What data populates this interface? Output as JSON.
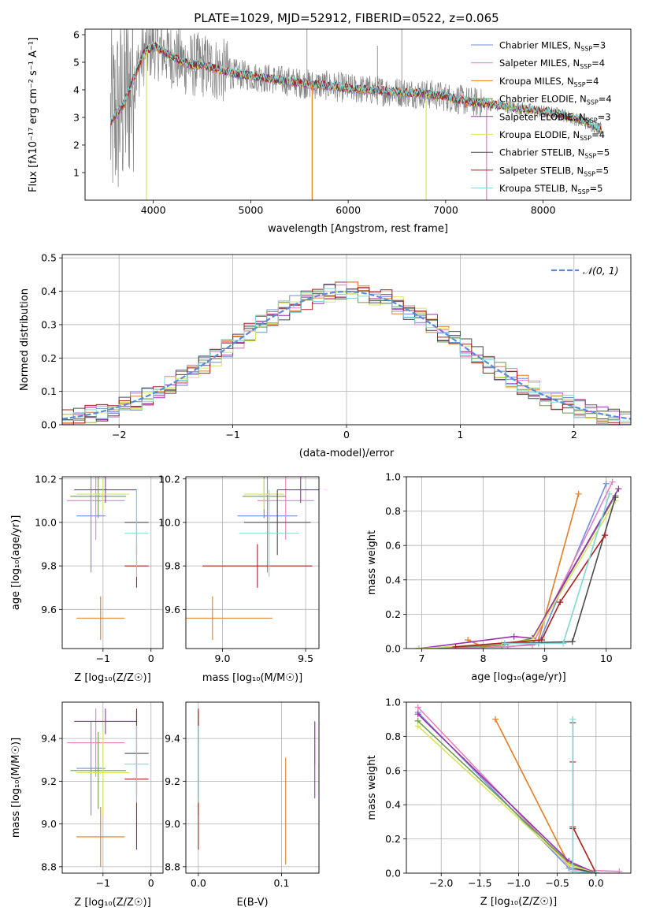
{
  "colors": {
    "chab_miles": "#6e8fdc",
    "salp_miles": "#e67fbc",
    "krou_miles": "#e57d22",
    "chab_elod": "#6d9b50",
    "salp_elod": "#9a30b0",
    "krou_elod": "#d8e45c",
    "chab_stel": "#4a4a4a",
    "salp_stel": "#aa1f1f",
    "krou_stel": "#7fd6d8",
    "data": "#808080",
    "normal": "#5b8bd6"
  },
  "chart_data": [
    {
      "id": "spectrum",
      "type": "line",
      "title": "PLATE=1029, MJD=52912, FIBERID=0522, z=0.065",
      "xlabel": "wavelength [Angstrom, rest frame]",
      "ylabel": "Flux [fλ10⁻¹⁷ erg cm⁻² s⁻¹ A⁻¹]",
      "xlim": [
        3300,
        8900
      ],
      "ylim": [
        0,
        6.2
      ],
      "xticks": [
        4000,
        5000,
        6000,
        7000,
        8000
      ],
      "yticks": [
        1,
        2,
        3,
        4,
        5,
        6
      ],
      "data_noise_band": [
        [
          3560,
          3800,
          0,
          6.2
        ],
        [
          3800,
          4800,
          1.8,
          6.2
        ]
      ],
      "continuum": {
        "x": [
          3560,
          3620,
          3700,
          3800,
          3900,
          4000,
          4100,
          4200,
          4300,
          4400,
          4500,
          4600,
          4800,
          5000,
          5200,
          5400,
          5600,
          5800,
          6000,
          6200,
          6400,
          6600,
          6800,
          7000,
          7200,
          7400,
          7600,
          7800,
          8000,
          8200,
          8400,
          8600
        ],
        "y": [
          2.8,
          3.1,
          3.5,
          4.4,
          5.3,
          5.6,
          5.4,
          5.2,
          5.0,
          4.9,
          4.9,
          4.8,
          4.6,
          4.5,
          4.4,
          4.3,
          4.2,
          4.15,
          4.05,
          4.0,
          3.95,
          3.9,
          3.85,
          3.75,
          3.6,
          3.5,
          3.4,
          3.3,
          3.2,
          3.1,
          2.85,
          2.6
        ]
      },
      "legend_position": "top-right",
      "legend": [
        {
          "label": "Chabrier MILES, N",
          "sub": "SSP",
          "value": "=3",
          "color_key": "chab_miles"
        },
        {
          "label": "Salpeter MILES, N",
          "sub": "SSP",
          "value": "=4",
          "color_key": "salp_miles"
        },
        {
          "label": "Kroupa MILES, N",
          "sub": "SSP",
          "value": "=4",
          "color_key": "krou_miles"
        },
        {
          "label": "Chabrier ELODIE, N",
          "sub": "SSP",
          "value": "=4",
          "color_key": "chab_elod"
        },
        {
          "label": "Salpeter ELODIE, N",
          "sub": "SSP",
          "value": "=3",
          "color_key": "salp_elod"
        },
        {
          "label": "Kroupa ELODIE, N",
          "sub": "SSP",
          "value": "=4",
          "color_key": "krou_elod"
        },
        {
          "label": "Chabrier STELIB, N",
          "sub": "SSP",
          "value": "=5",
          "color_key": "chab_stel"
        },
        {
          "label": "Salpeter STELIB, N",
          "sub": "SSP",
          "value": "=5",
          "color_key": "salp_stel"
        },
        {
          "label": "Kroupa STELIB, N",
          "sub": "SSP",
          "value": "=5",
          "color_key": "krou_stel"
        }
      ]
    },
    {
      "id": "residuals",
      "type": "line",
      "xlabel": "(data-model)/error",
      "ylabel": "Normed distribution",
      "xlim": [
        -2.5,
        2.5
      ],
      "ylim": [
        0,
        0.51
      ],
      "xticks": [
        -2,
        -1,
        0,
        1,
        2
      ],
      "xticklabels": [
        "−2",
        "−1",
        "0",
        "1",
        "2"
      ],
      "yticks": [
        0.0,
        0.1,
        0.2,
        0.3,
        0.4,
        0.5
      ],
      "yticklabels": [
        "0.0",
        "0.1",
        "0.2",
        "0.3",
        "0.4",
        "0.5"
      ],
      "grid": true,
      "legend_position": "top-right",
      "legend_label": "𝒩(0, 1)",
      "gaussian": {
        "mean": 0,
        "sigma": 1
      }
    },
    {
      "id": "age_vs_z",
      "type": "scatter",
      "xlabel": "Z [log₁₀(Z/Z☉)]",
      "ylabel": "age  [log₁₀(age/yr)]",
      "xlim": [
        -1.85,
        0.25
      ],
      "ylim": [
        9.42,
        10.21
      ],
      "xticks": [
        -1,
        0
      ],
      "xticklabels": [
        "−1",
        "0"
      ],
      "yticks": [
        9.6,
        9.8,
        10.0,
        10.2
      ],
      "yticklabels": [
        "9.6",
        "9.8",
        "10.0",
        "10.2"
      ],
      "grid": true,
      "points": [
        {
          "c": "chab_miles",
          "x": -1.25,
          "y": 10.03,
          "xe": 0.3,
          "ye": 0.26
        },
        {
          "c": "salp_miles",
          "x": -1.15,
          "y": 10.1,
          "xe": 0.6,
          "ye": 0.18
        },
        {
          "c": "krou_miles",
          "x": -1.05,
          "y": 9.56,
          "xe": 0.5,
          "ye": 0.1
        },
        {
          "c": "chab_elod",
          "x": -1.1,
          "y": 10.12,
          "xe": 0.58,
          "ye": 0.1
        },
        {
          "c": "salp_elod",
          "x": -0.95,
          "y": 10.15,
          "xe": 0.65,
          "ye": 0.06
        },
        {
          "c": "krou_elod",
          "x": -1.0,
          "y": 10.13,
          "xe": 0.55,
          "ye": 0.07
        },
        {
          "c": "chab_stel",
          "x": -0.3,
          "y": 10.0,
          "xe": 0.25,
          "ye": 0.15
        },
        {
          "c": "salp_stel",
          "x": -0.3,
          "y": 9.8,
          "xe": 0.25,
          "ye": 0.1
        },
        {
          "c": "krou_stel",
          "x": -0.3,
          "y": 9.95,
          "xe": 0.25,
          "ye": 0.2
        }
      ]
    },
    {
      "id": "age_vs_mass",
      "type": "scatter",
      "xlabel": "mass [log₁₀(M/M☉)]",
      "xlim": [
        8.78,
        9.58
      ],
      "ylim": [
        9.42,
        10.21
      ],
      "xticks": [
        9.0,
        9.5
      ],
      "xticklabels": [
        "9.0",
        "9.5"
      ],
      "yticks": [
        9.6,
        9.8,
        10.0,
        10.2
      ],
      "yticklabels": [
        "9.6",
        "9.8",
        "10.0",
        "10.2"
      ],
      "grid": true,
      "points": [
        {
          "c": "chab_miles",
          "x": 9.27,
          "y": 10.03,
          "xe": 0.18,
          "ye": 0.26
        },
        {
          "c": "salp_miles",
          "x": 9.38,
          "y": 10.1,
          "xe": 0.17,
          "ye": 0.18
        },
        {
          "c": "krou_miles",
          "x": 8.94,
          "y": 9.56,
          "xe": 0.36,
          "ye": 0.1
        },
        {
          "c": "chab_elod",
          "x": 9.25,
          "y": 10.12,
          "xe": 0.13,
          "ye": 0.1
        },
        {
          "c": "salp_elod",
          "x": 9.47,
          "y": 10.15,
          "xe": 0.14,
          "ye": 0.06
        },
        {
          "c": "krou_elod",
          "x": 9.25,
          "y": 10.13,
          "xe": 0.12,
          "ye": 0.07
        },
        {
          "c": "chab_stel",
          "x": 9.33,
          "y": 10.0,
          "xe": 0.2,
          "ye": 0.15
        },
        {
          "c": "salp_stel",
          "x": 9.21,
          "y": 9.8,
          "xe": 0.33,
          "ye": 0.1
        },
        {
          "c": "krou_stel",
          "x": 9.28,
          "y": 9.95,
          "xe": 0.18,
          "ye": 0.2
        }
      ]
    },
    {
      "id": "mass_weight_vs_age",
      "type": "line",
      "xlabel": "age  [log₁₀(age/yr)]",
      "ylabel": "mass weight",
      "xlim": [
        6.75,
        10.4
      ],
      "ylim": [
        0,
        1.0
      ],
      "xticks": [
        7,
        8,
        9,
        10
      ],
      "yticks": [
        0.0,
        0.2,
        0.4,
        0.6,
        0.8,
        1.0
      ],
      "yticklabels": [
        "0.0",
        "0.2",
        "0.4",
        "0.6",
        "0.8",
        "1.0"
      ],
      "grid": true,
      "series": [
        {
          "c": "chab_miles",
          "x": [
            6.95,
            8.4,
            8.9,
            10.0
          ],
          "y": [
            0.0,
            0.01,
            0.03,
            0.96
          ]
        },
        {
          "c": "salp_miles",
          "x": [
            6.95,
            8.3,
            8.8,
            10.1
          ],
          "y": [
            0.0,
            0.01,
            0.02,
            0.97
          ]
        },
        {
          "c": "krou_miles",
          "x": [
            7.75,
            8.0,
            8.9,
            9.55
          ],
          "y": [
            0.05,
            0.01,
            0.05,
            0.9
          ]
        },
        {
          "c": "chab_elod",
          "x": [
            6.95,
            8.3,
            8.8,
            10.15
          ],
          "y": [
            0.0,
            0.02,
            0.06,
            0.89
          ]
        },
        {
          "c": "salp_elod",
          "x": [
            6.95,
            8.5,
            8.8,
            10.2
          ],
          "y": [
            0.0,
            0.07,
            0.06,
            0.93
          ]
        },
        {
          "c": "krou_elod",
          "x": [
            6.95,
            8.3,
            8.8,
            10.15
          ],
          "y": [
            0.0,
            0.03,
            0.05,
            0.86
          ]
        },
        {
          "c": "chab_stel",
          "x": [
            8.35,
            9.45,
            10.15
          ],
          "y": [
            0.03,
            0.04,
            0.88
          ]
        },
        {
          "c": "salp_stel",
          "x": [
            7.55,
            8.95,
            9.25,
            9.98
          ],
          "y": [
            0.01,
            0.05,
            0.27,
            0.66
          ]
        },
        {
          "c": "krou_stel",
          "x": [
            8.35,
            9.3,
            10.05
          ],
          "y": [
            0.03,
            0.03,
            0.9
          ]
        }
      ]
    },
    {
      "id": "mass_vs_z",
      "type": "scatter",
      "xlabel": "Z [log₁₀(Z/Z☉)]",
      "ylabel": "mass [log₁₀(M/M☉)]",
      "xlim": [
        -1.85,
        0.25
      ],
      "ylim": [
        8.77,
        9.57
      ],
      "xticks": [
        -1,
        0
      ],
      "xticklabels": [
        "−1",
        "0"
      ],
      "yticks": [
        8.8,
        9.0,
        9.2,
        9.4
      ],
      "yticklabels": [
        "8.8",
        "9.0",
        "9.2",
        "9.4"
      ],
      "grid": true,
      "points": [
        {
          "c": "chab_miles",
          "x": -1.25,
          "y": 9.26,
          "xe": 0.3,
          "ye": 0.22
        },
        {
          "c": "salp_miles",
          "x": -1.15,
          "y": 9.38,
          "xe": 0.6,
          "ye": 0.16
        },
        {
          "c": "krou_miles",
          "x": -1.05,
          "y": 8.94,
          "xe": 0.5,
          "ye": 0.14
        },
        {
          "c": "chab_elod",
          "x": -1.1,
          "y": 9.25,
          "xe": 0.58,
          "ye": 0.18
        },
        {
          "c": "salp_elod",
          "x": -0.95,
          "y": 9.48,
          "xe": 0.65,
          "ye": 0.06
        },
        {
          "c": "krou_elod",
          "x": -1.0,
          "y": 9.24,
          "xe": 0.55,
          "ye": 0.2
        },
        {
          "c": "chab_stel",
          "x": -0.3,
          "y": 9.33,
          "xe": 0.25,
          "ye": 0.2
        },
        {
          "c": "salp_stel",
          "x": -0.3,
          "y": 9.21,
          "xe": 0.25,
          "ye": 0.33
        },
        {
          "c": "krou_stel",
          "x": -0.3,
          "y": 9.28,
          "xe": 0.25,
          "ye": 0.18
        }
      ]
    },
    {
      "id": "mass_vs_ebv",
      "type": "scatter",
      "xlabel": "E(B-V)",
      "xlim": [
        -0.015,
        0.145
      ],
      "ylim": [
        8.77,
        9.57
      ],
      "xticks": [
        0.0,
        0.1
      ],
      "xticklabels": [
        "0.0",
        "0.1"
      ],
      "yticks": [
        8.8,
        9.0,
        9.2,
        9.4
      ],
      "yticklabels": [
        "8.8",
        "9.0",
        "9.2",
        "9.4"
      ],
      "grid": true,
      "points": [
        {
          "c": "chab_miles",
          "x": 0.0,
          "y": 9.26,
          "xe": 0,
          "ye": 0.22
        },
        {
          "c": "salp_miles",
          "x": 0.14,
          "y": 9.38,
          "xe": 0,
          "ye": 0.1
        },
        {
          "c": "krou_miles",
          "x": 0.105,
          "y": 9.06,
          "xe": 0,
          "ye": 0.25
        },
        {
          "c": "chab_elod",
          "x": 0.0,
          "y": 9.25,
          "xe": 0,
          "ye": 0.18
        },
        {
          "c": "salp_elod",
          "x": 0.14,
          "y": 9.3,
          "xe": 0,
          "ye": 0.18
        },
        {
          "c": "krou_elod",
          "x": 0.0,
          "y": 9.24,
          "xe": 0,
          "ye": 0.2
        },
        {
          "c": "chab_stel",
          "x": 0.0,
          "y": 9.33,
          "xe": 0,
          "ye": 0.2
        },
        {
          "c": "salp_stel",
          "x": 0.0,
          "y": 9.21,
          "xe": 0,
          "ye": 0.33
        },
        {
          "c": "krou_stel",
          "x": 0.0,
          "y": 9.28,
          "xe": 0,
          "ye": 0.18
        }
      ]
    },
    {
      "id": "mass_weight_vs_z",
      "type": "line",
      "xlabel": "Z [log₁₀(Z/Z☉)]",
      "ylabel": "mass weight",
      "xlim": [
        -2.45,
        0.45
      ],
      "ylim": [
        0,
        1.0
      ],
      "xticks": [
        -2.0,
        -1.5,
        -1.0,
        -0.5,
        0.0
      ],
      "xticklabels": [
        "−2.0",
        "−1.5",
        "−1.0",
        "−0.5",
        "0.0"
      ],
      "yticks": [
        0.0,
        0.2,
        0.4,
        0.6,
        0.8,
        1.0
      ],
      "yticklabels": [
        "0.0",
        "0.2",
        "0.4",
        "0.6",
        "0.8",
        "1.0"
      ],
      "grid": true,
      "series": [
        {
          "c": "chab_miles",
          "x": [
            -2.3,
            -0.35,
            0.0
          ],
          "y": [
            0.94,
            0.03,
            0.0
          ]
        },
        {
          "c": "salp_miles",
          "x": [
            -2.3,
            -0.3,
            0.3
          ],
          "y": [
            0.97,
            0.02,
            0.01
          ]
        },
        {
          "c": "krou_miles",
          "x": [
            -1.3,
            -0.35,
            0.0
          ],
          "y": [
            0.9,
            0.05,
            0.0
          ]
        },
        {
          "c": "chab_elod",
          "x": [
            -2.3,
            -0.35,
            0.0
          ],
          "y": [
            0.89,
            0.06,
            0.0
          ]
        },
        {
          "c": "salp_elod",
          "x": [
            -2.3,
            -0.35,
            0.0
          ],
          "y": [
            0.93,
            0.07,
            0.0
          ]
        },
        {
          "c": "krou_elod",
          "x": [
            -2.3,
            -0.35,
            0.0
          ],
          "y": [
            0.86,
            0.05,
            0.0
          ]
        },
        {
          "c": "chab_stel",
          "x": [
            -0.3,
            -0.3,
            -0.3,
            0.0
          ],
          "y": [
            0.88,
            0.26,
            0.03,
            0.0
          ]
        },
        {
          "c": "salp_stel",
          "x": [
            -0.3,
            -0.3,
            0.0
          ],
          "y": [
            0.65,
            0.27,
            0.0
          ]
        },
        {
          "c": "krou_stel",
          "x": [
            -0.3,
            -0.3,
            -0.3,
            0.0
          ],
          "y": [
            0.9,
            0.03,
            0.01,
            0.0
          ]
        }
      ]
    }
  ]
}
